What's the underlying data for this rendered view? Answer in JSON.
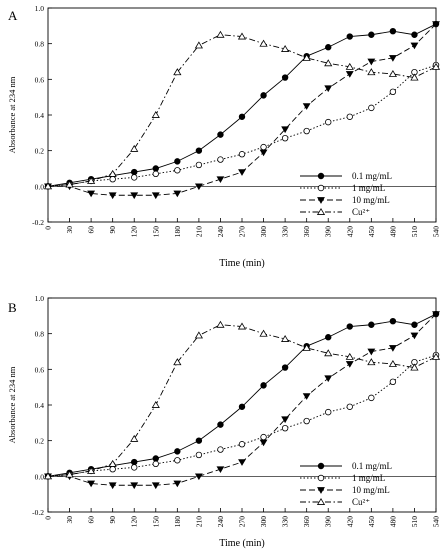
{
  "chart_data": [
    {
      "type": "line",
      "panel_label": "A",
      "xlabel": "Time (min)",
      "ylabel": "Absorbance at 234 nm",
      "xlim": [
        0,
        540
      ],
      "ylim": [
        -0.2,
        1.0
      ],
      "x": [
        0,
        30,
        60,
        90,
        120,
        150,
        180,
        210,
        240,
        270,
        300,
        330,
        360,
        390,
        420,
        450,
        480,
        510,
        540
      ],
      "yticks": [
        "-0.2",
        "0.0",
        "0.2",
        "0.4",
        "0.6",
        "0.8",
        "1.0"
      ],
      "xticks": [
        "0",
        "30",
        "60",
        "90",
        "120",
        "150",
        "180",
        "210",
        "240",
        "270",
        "300",
        "330",
        "360",
        "390",
        "420",
        "450",
        "480",
        "510",
        "540"
      ],
      "grid": false,
      "legend_position": "center-right",
      "series": [
        {
          "name": "0.1 mg/mL",
          "marker": "filled-circle",
          "dash": "solid",
          "values": [
            0.0,
            0.02,
            0.04,
            0.06,
            0.08,
            0.1,
            0.14,
            0.2,
            0.29,
            0.39,
            0.51,
            0.61,
            0.73,
            0.78,
            0.84,
            0.85,
            0.87,
            0.85,
            0.91
          ]
        },
        {
          "name": "1 mg/mL",
          "marker": "open-circle",
          "dash": "dotted",
          "values": [
            0.0,
            0.01,
            0.03,
            0.04,
            0.05,
            0.07,
            0.09,
            0.12,
            0.15,
            0.18,
            0.22,
            0.27,
            0.31,
            0.36,
            0.39,
            0.44,
            0.53,
            0.64,
            0.68
          ]
        },
        {
          "name": "10 mg/mL",
          "marker": "filled-triangle-down",
          "dash": "dashed",
          "values": [
            0.0,
            0.0,
            -0.04,
            -0.05,
            -0.05,
            -0.05,
            -0.04,
            0.0,
            0.04,
            0.08,
            0.19,
            0.32,
            0.45,
            0.55,
            0.63,
            0.7,
            0.72,
            0.79,
            0.91
          ]
        },
        {
          "name": "Cu²⁺",
          "marker": "open-triangle-up",
          "dash": "dash-dot",
          "values": [
            0.0,
            0.01,
            0.03,
            0.07,
            0.21,
            0.4,
            0.64,
            0.79,
            0.85,
            0.84,
            0.8,
            0.77,
            0.72,
            0.69,
            0.67,
            0.64,
            0.63,
            0.61,
            0.67
          ]
        }
      ]
    },
    {
      "type": "line",
      "panel_label": "B",
      "xlabel": "Time (min)",
      "ylabel": "Absorbance at 234 nm",
      "xlim": [
        0,
        540
      ],
      "ylim": [
        -0.2,
        1.0
      ],
      "x": [
        0,
        30,
        60,
        90,
        120,
        150,
        180,
        210,
        240,
        270,
        300,
        330,
        360,
        390,
        420,
        450,
        480,
        510,
        540
      ],
      "yticks": [
        "-0.2",
        "0.0",
        "0.2",
        "0.4",
        "0.6",
        "0.8",
        "1.0"
      ],
      "xticks": [
        "0",
        "30",
        "60",
        "90",
        "120",
        "150",
        "180",
        "210",
        "240",
        "270",
        "300",
        "330",
        "360",
        "390",
        "420",
        "450",
        "480",
        "510",
        "540"
      ],
      "grid": false,
      "legend_position": "center-right",
      "series": [
        {
          "name": "0.1 mg/mL",
          "marker": "filled-circle",
          "dash": "solid",
          "values": [
            0.0,
            0.02,
            0.04,
            0.06,
            0.08,
            0.1,
            0.14,
            0.2,
            0.29,
            0.39,
            0.51,
            0.61,
            0.73,
            0.78,
            0.84,
            0.85,
            0.87,
            0.85,
            0.91
          ]
        },
        {
          "name": "1 mg/mL",
          "marker": "open-circle",
          "dash": "dotted",
          "values": [
            0.0,
            0.01,
            0.03,
            0.04,
            0.05,
            0.07,
            0.09,
            0.12,
            0.15,
            0.18,
            0.22,
            0.27,
            0.31,
            0.36,
            0.39,
            0.44,
            0.53,
            0.64,
            0.68
          ]
        },
        {
          "name": "10 mg/mL",
          "marker": "filled-triangle-down",
          "dash": "dashed",
          "values": [
            0.0,
            0.0,
            -0.04,
            -0.05,
            -0.05,
            -0.05,
            -0.04,
            0.0,
            0.04,
            0.08,
            0.19,
            0.32,
            0.45,
            0.55,
            0.63,
            0.7,
            0.72,
            0.79,
            0.91
          ]
        },
        {
          "name": "Cu²⁺",
          "marker": "open-triangle-up",
          "dash": "dash-dot",
          "values": [
            0.0,
            0.01,
            0.03,
            0.07,
            0.21,
            0.4,
            0.64,
            0.79,
            0.85,
            0.84,
            0.8,
            0.77,
            0.72,
            0.69,
            0.67,
            0.64,
            0.63,
            0.61,
            0.67
          ]
        }
      ]
    }
  ]
}
